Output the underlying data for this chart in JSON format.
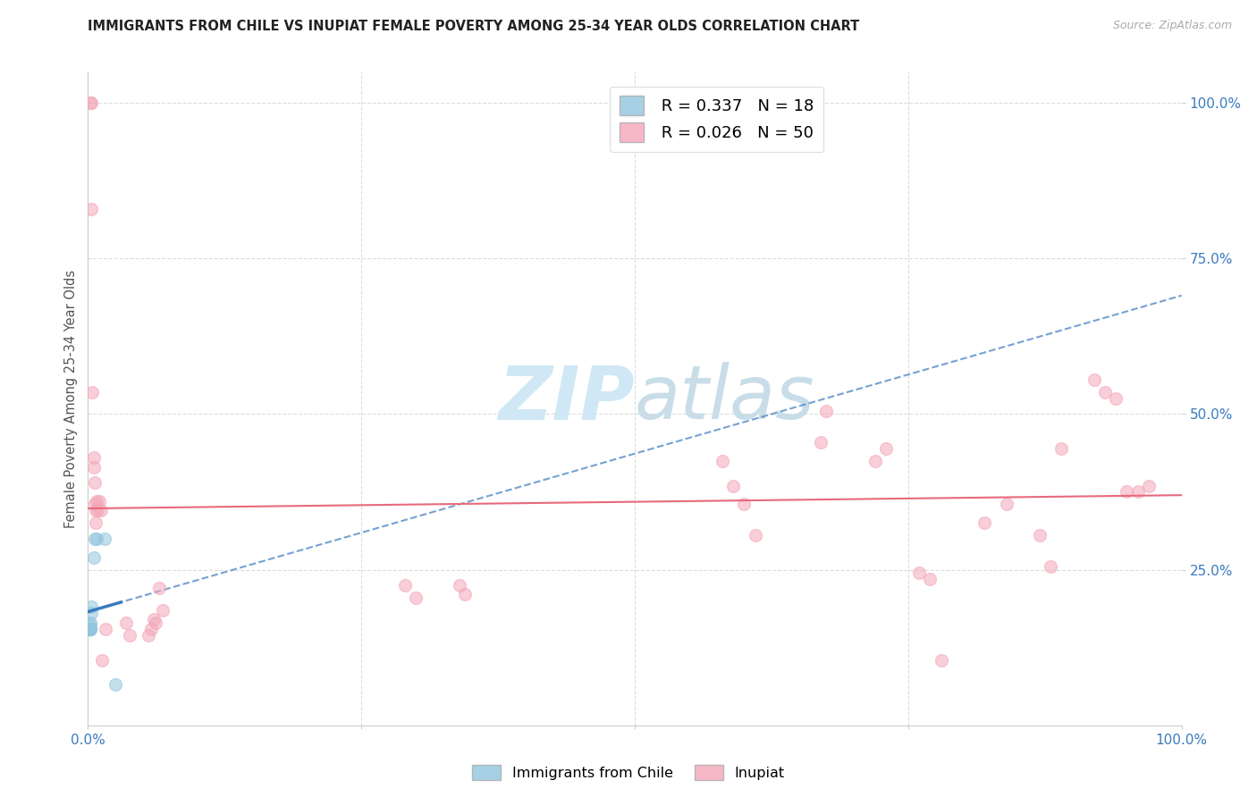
{
  "title": "IMMIGRANTS FROM CHILE VS INUPIAT FEMALE POVERTY AMONG 25-34 YEAR OLDS CORRELATION CHART",
  "source": "Source: ZipAtlas.com",
  "ylabel": "Female Poverty Among 25-34 Year Olds",
  "legend_blue_r": "R = 0.337",
  "legend_blue_n": "N = 18",
  "legend_pink_r": "R = 0.026",
  "legend_pink_n": "N = 50",
  "legend_label_blue": "Immigrants from Chile",
  "legend_label_pink": "Inupiat",
  "blue_color": "#92c5de",
  "pink_color": "#f4a6b8",
  "blue_line_color": "#3a7bbf",
  "pink_line_color": "#e8697d",
  "watermark_color": "#d0e8f5",
  "blue_points": [
    [
      0.001,
      0.155
    ],
    [
      0.001,
      0.155
    ],
    [
      0.001,
      0.155
    ],
    [
      0.001,
      0.155
    ],
    [
      0.001,
      0.155
    ],
    [
      0.001,
      0.155
    ],
    [
      0.002,
      0.155
    ],
    [
      0.002,
      0.155
    ],
    [
      0.002,
      0.155
    ],
    [
      0.002,
      0.16
    ],
    [
      0.002,
      0.165
    ],
    [
      0.003,
      0.18
    ],
    [
      0.003,
      0.19
    ],
    [
      0.005,
      0.27
    ],
    [
      0.006,
      0.3
    ],
    [
      0.008,
      0.3
    ],
    [
      0.015,
      0.3
    ],
    [
      0.025,
      0.065
    ]
  ],
  "pink_points": [
    [
      0.002,
      1.0
    ],
    [
      0.003,
      1.0
    ],
    [
      0.003,
      0.83
    ],
    [
      0.004,
      0.535
    ],
    [
      0.005,
      0.43
    ],
    [
      0.005,
      0.415
    ],
    [
      0.006,
      0.39
    ],
    [
      0.006,
      0.355
    ],
    [
      0.007,
      0.325
    ],
    [
      0.007,
      0.345
    ],
    [
      0.008,
      0.36
    ],
    [
      0.009,
      0.345
    ],
    [
      0.01,
      0.36
    ],
    [
      0.012,
      0.345
    ],
    [
      0.013,
      0.105
    ],
    [
      0.016,
      0.155
    ],
    [
      0.035,
      0.165
    ],
    [
      0.038,
      0.145
    ],
    [
      0.055,
      0.145
    ],
    [
      0.058,
      0.155
    ],
    [
      0.06,
      0.17
    ],
    [
      0.062,
      0.165
    ],
    [
      0.065,
      0.22
    ],
    [
      0.068,
      0.185
    ],
    [
      0.29,
      0.225
    ],
    [
      0.3,
      0.205
    ],
    [
      0.34,
      0.225
    ],
    [
      0.345,
      0.21
    ],
    [
      0.58,
      0.425
    ],
    [
      0.59,
      0.385
    ],
    [
      0.6,
      0.355
    ],
    [
      0.61,
      0.305
    ],
    [
      0.67,
      0.455
    ],
    [
      0.675,
      0.505
    ],
    [
      0.72,
      0.425
    ],
    [
      0.73,
      0.445
    ],
    [
      0.76,
      0.245
    ],
    [
      0.77,
      0.235
    ],
    [
      0.78,
      0.105
    ],
    [
      0.82,
      0.325
    ],
    [
      0.84,
      0.355
    ],
    [
      0.87,
      0.305
    ],
    [
      0.88,
      0.255
    ],
    [
      0.89,
      0.445
    ],
    [
      0.92,
      0.555
    ],
    [
      0.93,
      0.535
    ],
    [
      0.94,
      0.525
    ],
    [
      0.95,
      0.375
    ],
    [
      0.96,
      0.375
    ],
    [
      0.97,
      0.385
    ]
  ],
  "xmin": 0.0,
  "xmax": 1.0,
  "ymin": 0.0,
  "ymax": 1.05,
  "marker_size": 100,
  "marker_alpha": 0.55,
  "grid_color": "#dddddd",
  "spine_color": "#cccccc"
}
